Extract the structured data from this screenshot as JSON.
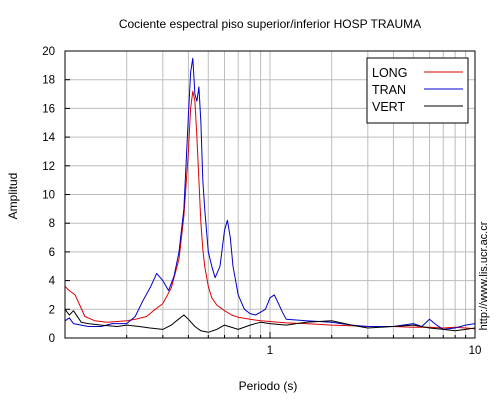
{
  "chart_data": {
    "type": "line",
    "title": "Cociente espectral piso superior/inferior  HOSP TRAUMA",
    "xlabel": "Periodo (s)",
    "ylabel": "Amplitud",
    "xscale": "log",
    "xlim": [
      0.1,
      10
    ],
    "ylim": [
      0,
      20
    ],
    "xtick_labels": [
      "1",
      "10"
    ],
    "yticks": [
      0,
      2,
      4,
      6,
      8,
      10,
      12,
      14,
      16,
      18,
      20
    ],
    "grid": true,
    "legend_position": "top-right",
    "side_text": "http://www.lis.ucr.ac.cr",
    "colors": {
      "LONG": "#e00000",
      "TRAN": "#0000cc",
      "VERT": "#000000"
    },
    "series": [
      {
        "name": "LONG",
        "x": [
          0.1,
          0.105,
          0.112,
          0.118,
          0.125,
          0.14,
          0.16,
          0.18,
          0.2,
          0.22,
          0.25,
          0.27,
          0.3,
          0.33,
          0.36,
          0.38,
          0.4,
          0.41,
          0.42,
          0.43,
          0.44,
          0.45,
          0.46,
          0.47,
          0.48,
          0.5,
          0.52,
          0.55,
          0.6,
          0.65,
          0.7,
          0.8,
          0.9,
          1.0,
          1.2,
          1.5,
          2.0,
          2.5,
          3.0,
          4.0,
          5.0,
          6.0,
          7.0,
          8.0,
          9.0,
          10.0
        ],
        "y": [
          3.6,
          3.3,
          3.0,
          2.3,
          1.5,
          1.2,
          1.1,
          1.15,
          1.2,
          1.3,
          1.5,
          1.9,
          2.4,
          3.5,
          5.5,
          8.5,
          13.0,
          16.0,
          17.2,
          16.5,
          14.0,
          11.0,
          8.0,
          6.2,
          5.0,
          3.6,
          2.8,
          2.3,
          1.9,
          1.6,
          1.45,
          1.3,
          1.2,
          1.15,
          1.05,
          1.0,
          0.9,
          0.85,
          0.8,
          0.8,
          0.75,
          0.75,
          0.7,
          0.75,
          0.7,
          0.65
        ]
      },
      {
        "name": "TRAN",
        "x": [
          0.1,
          0.105,
          0.11,
          0.12,
          0.13,
          0.15,
          0.17,
          0.2,
          0.22,
          0.24,
          0.26,
          0.28,
          0.3,
          0.32,
          0.34,
          0.36,
          0.38,
          0.4,
          0.41,
          0.42,
          0.43,
          0.44,
          0.45,
          0.46,
          0.47,
          0.48,
          0.49,
          0.5,
          0.52,
          0.54,
          0.57,
          0.6,
          0.62,
          0.64,
          0.66,
          0.7,
          0.75,
          0.8,
          0.85,
          0.9,
          0.95,
          1.0,
          1.05,
          1.1,
          1.15,
          1.2,
          1.5,
          2.0,
          2.5,
          3.0,
          4.0,
          5.0,
          5.5,
          6.0,
          6.5,
          7.0,
          8.0,
          9.0,
          10.0
        ],
        "y": [
          1.2,
          1.4,
          1.0,
          0.9,
          0.8,
          0.8,
          1.0,
          1.0,
          1.5,
          2.6,
          3.5,
          4.5,
          4.0,
          3.3,
          4.3,
          6.0,
          9.0,
          15.5,
          18.5,
          19.5,
          17.0,
          16.5,
          17.5,
          15.0,
          11.0,
          9.0,
          7.5,
          6.0,
          5.0,
          4.2,
          5.0,
          7.5,
          8.2,
          7.0,
          5.0,
          3.0,
          2.0,
          1.7,
          1.6,
          1.8,
          2.0,
          2.8,
          3.0,
          2.4,
          1.8,
          1.3,
          1.2,
          1.1,
          0.9,
          0.8,
          0.8,
          1.0,
          0.8,
          1.3,
          0.9,
          0.6,
          0.7,
          0.9,
          1.0
        ]
      },
      {
        "name": "VERT",
        "x": [
          0.1,
          0.105,
          0.11,
          0.12,
          0.13,
          0.15,
          0.18,
          0.2,
          0.23,
          0.26,
          0.3,
          0.33,
          0.35,
          0.38,
          0.4,
          0.43,
          0.46,
          0.5,
          0.55,
          0.6,
          0.7,
          0.8,
          0.9,
          1.0,
          1.2,
          1.5,
          2.0,
          2.5,
          3.0,
          4.0,
          5.0,
          6.0,
          7.0,
          8.0,
          9.0,
          10.0
        ],
        "y": [
          2.0,
          1.6,
          1.9,
          1.1,
          1.0,
          0.9,
          0.8,
          0.9,
          0.8,
          0.7,
          0.6,
          0.9,
          1.2,
          1.6,
          1.3,
          0.8,
          0.5,
          0.4,
          0.6,
          0.9,
          0.6,
          0.9,
          1.1,
          1.0,
          0.9,
          1.1,
          1.2,
          0.9,
          0.7,
          0.8,
          0.9,
          0.7,
          0.6,
          0.5,
          0.6,
          0.7
        ]
      }
    ]
  }
}
